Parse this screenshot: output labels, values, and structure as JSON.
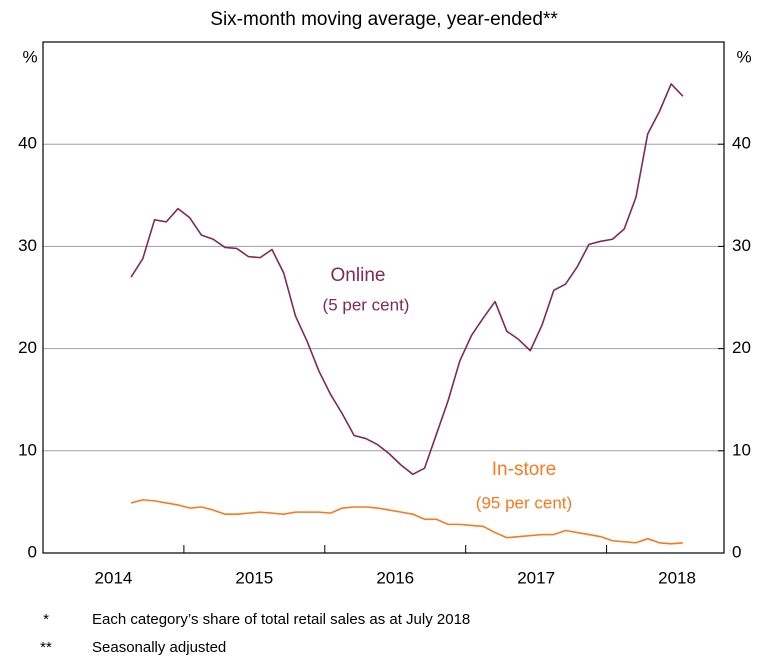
{
  "chart_data": {
    "type": "line",
    "title": "Six-month moving average, year-ended**",
    "y_unit": "%",
    "y2_unit": "%",
    "categories": [
      null,
      null,
      null,
      null,
      null,
      null,
      "2014",
      null,
      null,
      null,
      null,
      null,
      null,
      null,
      null,
      null,
      null,
      null,
      "2015",
      null,
      null,
      null,
      null,
      null,
      null,
      null,
      null,
      null,
      null,
      null,
      "2016",
      null,
      null,
      null,
      null,
      null,
      null,
      null,
      null,
      null,
      null,
      null,
      "2017",
      null,
      null,
      null,
      null,
      null,
      null,
      null,
      null,
      null,
      null,
      null,
      "2018",
      null,
      null,
      null
    ],
    "series": [
      {
        "name": "Online",
        "color": "#7b2d52",
        "note": "(5 per cent)",
        "values": [
          null,
          null,
          null,
          null,
          null,
          null,
          null,
          27.0,
          28.8,
          32.6,
          32.4,
          33.7,
          32.8,
          31.1,
          30.7,
          29.9,
          29.8,
          29.0,
          28.9,
          29.7,
          27.4,
          23.2,
          20.7,
          17.8,
          15.5,
          13.6,
          11.5,
          11.2,
          10.6,
          9.7,
          8.6,
          7.7,
          8.3,
          11.6,
          14.9,
          18.8,
          21.3,
          23.0,
          24.6,
          21.7,
          20.9,
          19.8,
          22.3,
          25.7,
          26.3,
          28.0,
          30.2,
          30.5,
          30.7,
          31.7,
          34.8,
          41.0,
          43.2,
          45.9,
          44.7,
          null,
          null,
          null
        ]
      },
      {
        "name": "In-store",
        "color": "#f47b20",
        "note": "(95 per cent)",
        "values": [
          null,
          null,
          null,
          null,
          null,
          null,
          null,
          4.9,
          5.2,
          5.1,
          4.9,
          4.7,
          4.4,
          4.5,
          4.2,
          3.8,
          3.8,
          3.9,
          4.0,
          3.9,
          3.8,
          4.0,
          4.0,
          4.0,
          3.9,
          4.4,
          4.5,
          4.5,
          4.4,
          4.2,
          4.0,
          3.8,
          3.3,
          3.3,
          2.8,
          2.8,
          2.7,
          2.6,
          2.0,
          1.5,
          1.6,
          1.7,
          1.8,
          1.8,
          2.2,
          2.0,
          1.8,
          1.6,
          1.2,
          1.1,
          1.0,
          1.4,
          1.0,
          0.9,
          1.0,
          null,
          null,
          null
        ]
      }
    ],
    "ylim": [
      0,
      50
    ],
    "yticks": [
      0,
      10,
      20,
      30,
      40
    ],
    "y2lim": [
      0,
      50
    ],
    "y2ticks": [
      0,
      10,
      20,
      30,
      40
    ],
    "grid": true,
    "footnotes": [
      {
        "marker": "*",
        "text": "Each category’s share of total retail sales as at July 2018"
      },
      {
        "marker": "**",
        "text": "Seasonally adjusted"
      }
    ]
  }
}
